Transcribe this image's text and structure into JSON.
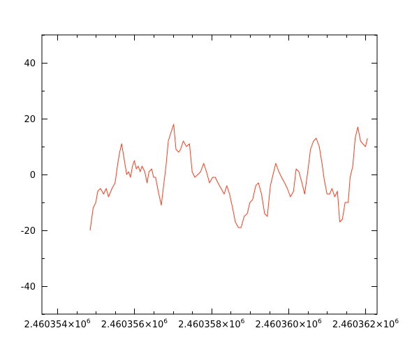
{
  "chart_data": {
    "type": "line",
    "title": "",
    "xlabel": "",
    "ylabel": "",
    "xlim": [
      2460353.6,
      2460362.3
    ],
    "ylim": [
      -50,
      50
    ],
    "grid": false,
    "line_color": "#ff3b1a",
    "x_ticks": [
      {
        "value": 2460354,
        "mantissa": "2.460354",
        "exponent": "6"
      },
      {
        "value": 2460356,
        "mantissa": "2.460356",
        "exponent": "6"
      },
      {
        "value": 2460358,
        "mantissa": "2.460358",
        "exponent": "6"
      },
      {
        "value": 2460360,
        "mantissa": "2.460360",
        "exponent": "6"
      },
      {
        "value": 2460362,
        "mantissa": "2.460362",
        "exponent": "6"
      }
    ],
    "y_ticks": [
      {
        "value": -40,
        "label": "-40"
      },
      {
        "value": -20,
        "label": "-20"
      },
      {
        "value": 0,
        "label": "0"
      },
      {
        "value": 20,
        "label": "20"
      },
      {
        "value": 40,
        "label": "40"
      }
    ],
    "series": [
      {
        "x": [
          2460354.85,
          2460354.93,
          2460355.0,
          2460355.05,
          2460355.12,
          2460355.2,
          2460355.27,
          2460355.33,
          2460355.42,
          2460355.5,
          2460355.57,
          2460355.62,
          2460355.67,
          2460355.73,
          2460355.8,
          2460355.85,
          2460355.9,
          2460355.95,
          2460356.0,
          2460356.05,
          2460356.1,
          2460356.15,
          2460356.2,
          2460356.27,
          2460356.33,
          2460356.38,
          2460356.45,
          2460356.5,
          2460356.55,
          2460356.62,
          2460356.7,
          2460356.75,
          2460356.82,
          2460356.88,
          2460356.95,
          2460357.02,
          2460357.08,
          2460357.15,
          2460357.2,
          2460357.27,
          2460357.35,
          2460357.43,
          2460357.5,
          2460357.57,
          2460357.65,
          2460357.72,
          2460357.8,
          2460357.87,
          2460357.95,
          2460358.03,
          2460358.1,
          2460358.17,
          2460358.25,
          2460358.33,
          2460358.4,
          2460358.47,
          2460358.55,
          2460358.62,
          2460358.7,
          2460358.77,
          2460358.85,
          2460358.93,
          2460359.0,
          2460359.07,
          2460359.15,
          2460359.22,
          2460359.3,
          2460359.38,
          2460359.45,
          2460359.53,
          2460359.6,
          2460359.67,
          2460359.75,
          2460359.82,
          2460359.9,
          2460359.97,
          2460360.05,
          2460360.13,
          2460360.2,
          2460360.27,
          2460360.35,
          2460360.42,
          2460360.5,
          2460360.57,
          2460360.65,
          2460360.72,
          2460360.8,
          2460360.87,
          2460360.93,
          2460361.0,
          2460361.07,
          2460361.13,
          2460361.2,
          2460361.27,
          2460361.33,
          2460361.4,
          2460361.47,
          2460361.55,
          2460361.6,
          2460361.67,
          2460361.73,
          2460361.8,
          2460361.87,
          2460361.93,
          2460362.0,
          2460362.05
        ],
        "y": [
          -20,
          -12,
          -10,
          -6,
          -5,
          -7,
          -5,
          -8,
          -5,
          -3,
          4,
          8,
          11,
          6,
          0,
          1,
          -1,
          3,
          5,
          2,
          3,
          1,
          3,
          1,
          -3,
          1,
          2,
          -1,
          -1,
          -6,
          -11,
          -5,
          3,
          12,
          15,
          18,
          9,
          8,
          9,
          12,
          10,
          11,
          1,
          -1,
          0,
          1,
          4,
          1,
          -3,
          -1,
          -1,
          -3,
          -5,
          -7,
          -4,
          -7,
          -12,
          -17,
          -19,
          -19,
          -15,
          -14,
          -10,
          -9,
          -4,
          -3,
          -7,
          -14,
          -15,
          -4,
          0,
          4,
          1,
          -1,
          -3,
          -5,
          -8,
          -6,
          2,
          1,
          -3,
          -7,
          1,
          9,
          12,
          13,
          10,
          4,
          -2,
          -7,
          -7,
          -5,
          -8,
          -6,
          -17,
          -16,
          -10,
          -10,
          -1,
          3,
          13,
          17,
          12,
          11,
          10,
          13
        ]
      }
    ]
  }
}
